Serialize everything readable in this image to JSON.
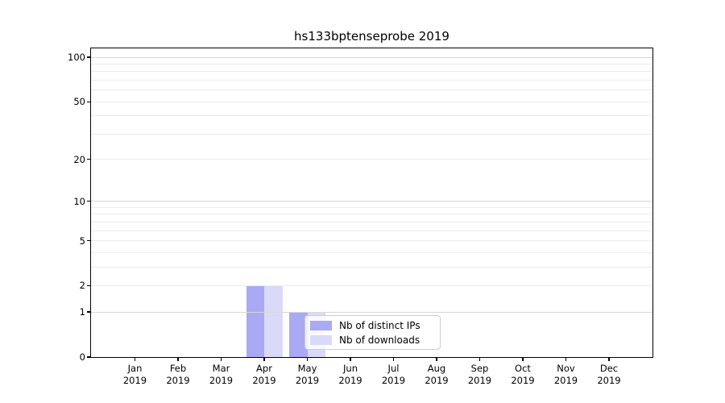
{
  "chart_data": {
    "type": "bar",
    "title": "hs133bptenseprobe 2019",
    "x_categories": [
      "Jan",
      "Feb",
      "Mar",
      "Apr",
      "May",
      "Jun",
      "Jul",
      "Aug",
      "Sep",
      "Oct",
      "Nov",
      "Dec"
    ],
    "x_category_year": "2019",
    "series": [
      {
        "name": "Nb of distinct IPs",
        "color": "#a9a9f6",
        "values": [
          0,
          0,
          0,
          2,
          1,
          0,
          0,
          0,
          0,
          0,
          0,
          0
        ]
      },
      {
        "name": "Nb of downloads",
        "color": "#dadaf8",
        "values": [
          0,
          0,
          0,
          2,
          1,
          0,
          0,
          0,
          0,
          0,
          0,
          0
        ]
      }
    ],
    "xlabel": "",
    "ylabel": "",
    "y_ticks": [
      0,
      1,
      2,
      5,
      10,
      20,
      50,
      100
    ],
    "y_scale": "log10(1+x)",
    "ylim": [
      0,
      115
    ],
    "grid": true,
    "grid_values_minor": [
      2,
      3,
      4,
      5,
      6,
      7,
      8,
      9,
      20,
      30,
      40,
      50,
      60,
      70,
      80,
      90
    ],
    "grid_values_major": [
      1,
      10,
      100
    ],
    "legend_position": "inside lower-center-right"
  },
  "style": {
    "background": "#ffffff",
    "grid_minor_color": "#ececec",
    "grid_major_color": "#d7d7d7",
    "spine_color": "#000000",
    "legend_border_color": "#cccccc",
    "legend_bg": "rgba(255,255,255,0.8)"
  }
}
